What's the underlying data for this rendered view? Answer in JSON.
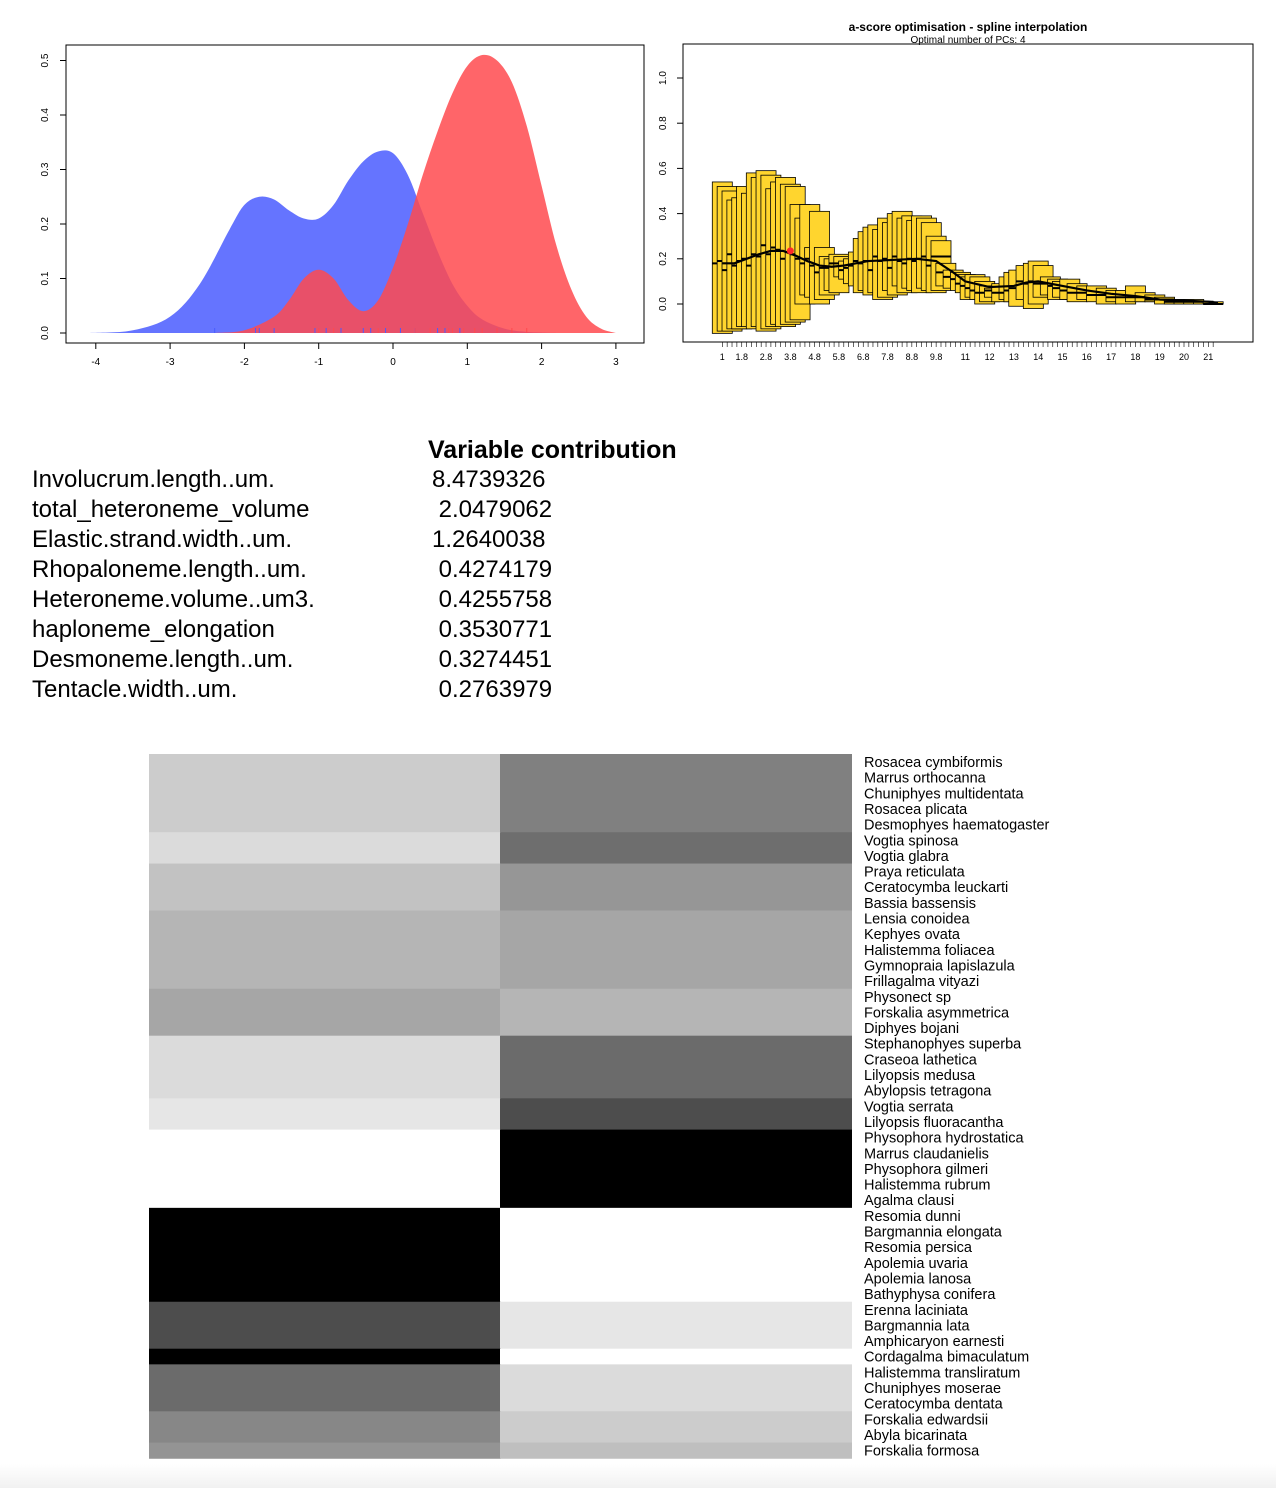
{
  "density_plot": {
    "chart_data": {
      "type": "area",
      "title": "",
      "xlabel": "",
      "ylabel": "",
      "xlim": [
        -4.2,
        3.1
      ],
      "ylim": [
        0,
        0.52
      ],
      "x_ticks": [
        "-4",
        "-3",
        "-2",
        "-1",
        "0",
        "1",
        "2",
        "3"
      ],
      "y_ticks": [
        "0.0",
        "0.1",
        "0.2",
        "0.3",
        "0.4",
        "0.5"
      ],
      "series": [
        {
          "color": "#4a5cff",
          "fill_opacity": 0.85,
          "x": [
            -4.1,
            -3.5,
            -3.0,
            -2.6,
            -2.2,
            -2.0,
            -1.8,
            -1.6,
            -1.4,
            -1.2,
            -1.0,
            -0.8,
            -0.6,
            -0.4,
            -0.2,
            0.0,
            0.2,
            0.4,
            0.6,
            0.8,
            1.0,
            1.2,
            1.5,
            1.8,
            2.2
          ],
          "y": [
            0.0,
            0.005,
            0.03,
            0.09,
            0.19,
            0.235,
            0.25,
            0.245,
            0.225,
            0.21,
            0.21,
            0.235,
            0.28,
            0.315,
            0.333,
            0.33,
            0.29,
            0.22,
            0.15,
            0.09,
            0.05,
            0.025,
            0.008,
            0.002,
            0.0
          ]
        },
        {
          "color": "#ff4a4f",
          "fill_opacity": 0.85,
          "x": [
            -2.4,
            -2.0,
            -1.6,
            -1.4,
            -1.2,
            -1.0,
            -0.8,
            -0.6,
            -0.4,
            -0.2,
            0.0,
            0.2,
            0.4,
            0.6,
            0.8,
            1.0,
            1.2,
            1.4,
            1.6,
            1.8,
            2.0,
            2.2,
            2.4,
            2.6,
            2.8,
            3.0
          ],
          "y": [
            0.0,
            0.005,
            0.03,
            0.06,
            0.1,
            0.116,
            0.1,
            0.06,
            0.04,
            0.06,
            0.12,
            0.2,
            0.29,
            0.37,
            0.44,
            0.49,
            0.51,
            0.5,
            0.46,
            0.38,
            0.27,
            0.16,
            0.08,
            0.03,
            0.008,
            0.0
          ]
        }
      ],
      "rug": {
        "blue": [
          -2.4,
          -1.85,
          -1.8,
          -1.6,
          -1.05,
          -0.9,
          -0.7,
          -0.4,
          -0.3,
          -0.1,
          0.1,
          0.3,
          0.6,
          0.7,
          0.9
        ],
        "red": [
          -1.0,
          -0.8,
          -0.2,
          0.3,
          0.5,
          0.75,
          0.8,
          0.95,
          1.1,
          1.2,
          1.4,
          1.6,
          1.8
        ]
      }
    }
  },
  "ascore_plot": {
    "title": "a-score optimisation - spline interpolation",
    "subtitle": "Optimal number of PCs: 4",
    "chart_data": {
      "type": "boxplot",
      "title": "a-score optimisation - spline interpolation",
      "subtitle": "Optimal number of PCs: 4",
      "xlim": [
        0,
        22.5
      ],
      "ylim": [
        -0.14,
        1.16
      ],
      "y_ticks": [
        "0.0",
        "0.2",
        "0.4",
        "0.6",
        "0.8",
        "1.0"
      ],
      "x_ticks": [
        "1",
        "1.8",
        "2.8",
        "3.8",
        "4.8",
        "5.8",
        "6.8",
        "7.8",
        "8.8",
        "9.8",
        "11",
        "12",
        "13",
        "14",
        "15",
        "16",
        "17",
        "18",
        "19",
        "20",
        "21"
      ],
      "box_color": "#ffd52e",
      "boxes": [
        {
          "x": 1.0,
          "lo": -0.13,
          "hi": 0.54,
          "med": 0.18
        },
        {
          "x": 1.2,
          "lo": -0.12,
          "hi": 0.52,
          "med": 0.19
        },
        {
          "x": 1.4,
          "lo": -0.12,
          "hi": 0.5,
          "med": 0.15
        },
        {
          "x": 1.6,
          "lo": -0.11,
          "hi": 0.46,
          "med": 0.22
        },
        {
          "x": 1.8,
          "lo": -0.11,
          "hi": 0.47,
          "med": 0.17
        },
        {
          "x": 2.0,
          "lo": -0.1,
          "hi": 0.52,
          "med": 0.19
        },
        {
          "x": 2.2,
          "lo": -0.1,
          "hi": 0.49,
          "med": 0.2
        },
        {
          "x": 2.4,
          "lo": -0.11,
          "hi": 0.58,
          "med": 0.17
        },
        {
          "x": 2.6,
          "lo": -0.1,
          "hi": 0.56,
          "med": 0.22
        },
        {
          "x": 2.8,
          "lo": -0.12,
          "hi": 0.59,
          "med": 0.21
        },
        {
          "x": 3.0,
          "lo": -0.11,
          "hi": 0.57,
          "med": 0.26
        },
        {
          "x": 3.2,
          "lo": -0.1,
          "hi": 0.51,
          "med": 0.22
        },
        {
          "x": 3.4,
          "lo": -0.09,
          "hi": 0.54,
          "med": 0.25
        },
        {
          "x": 3.6,
          "lo": -0.1,
          "hi": 0.56,
          "med": 0.24
        },
        {
          "x": 3.8,
          "lo": -0.09,
          "hi": 0.53,
          "med": 0.2
        },
        {
          "x": 4.0,
          "lo": -0.08,
          "hi": 0.52,
          "med": 0.23
        },
        {
          "x": 4.2,
          "lo": -0.07,
          "hi": 0.44,
          "med": 0.22
        },
        {
          "x": 4.4,
          "lo": 0.0,
          "hi": 0.38,
          "med": 0.2
        },
        {
          "x": 4.6,
          "lo": 0.04,
          "hi": 0.44,
          "med": 0.18
        },
        {
          "x": 4.8,
          "lo": 0.03,
          "hi": 0.25,
          "med": 0.2
        },
        {
          "x": 5.0,
          "lo": 0.0,
          "hi": 0.41,
          "med": 0.17
        },
        {
          "x": 5.2,
          "lo": 0.02,
          "hi": 0.25,
          "med": 0.14
        },
        {
          "x": 5.4,
          "lo": 0.04,
          "hi": 0.21,
          "med": 0.16
        },
        {
          "x": 5.6,
          "lo": 0.06,
          "hi": 0.2,
          "med": 0.16
        },
        {
          "x": 5.8,
          "lo": 0.05,
          "hi": 0.22,
          "med": 0.18
        },
        {
          "x": 6.0,
          "lo": 0.12,
          "hi": 0.21,
          "med": 0.18
        },
        {
          "x": 6.2,
          "lo": 0.11,
          "hi": 0.19,
          "med": 0.15
        },
        {
          "x": 6.4,
          "lo": 0.09,
          "hi": 0.2,
          "med": 0.16
        },
        {
          "x": 6.6,
          "lo": 0.08,
          "hi": 0.23,
          "med": 0.17
        },
        {
          "x": 6.8,
          "lo": 0.05,
          "hi": 0.29,
          "med": 0.19
        },
        {
          "x": 7.0,
          "lo": 0.06,
          "hi": 0.32,
          "med": 0.18
        },
        {
          "x": 7.2,
          "lo": 0.04,
          "hi": 0.34,
          "med": 0.19
        },
        {
          "x": 7.4,
          "lo": 0.05,
          "hi": 0.35,
          "med": 0.15
        },
        {
          "x": 7.6,
          "lo": 0.02,
          "hi": 0.33,
          "med": 0.21
        },
        {
          "x": 7.8,
          "lo": 0.03,
          "hi": 0.38,
          "med": 0.19
        },
        {
          "x": 8.0,
          "lo": 0.06,
          "hi": 0.36,
          "med": 0.2
        },
        {
          "x": 8.2,
          "lo": 0.04,
          "hi": 0.4,
          "med": 0.16
        },
        {
          "x": 8.4,
          "lo": 0.08,
          "hi": 0.41,
          "med": 0.21
        },
        {
          "x": 8.6,
          "lo": 0.05,
          "hi": 0.38,
          "med": 0.19
        },
        {
          "x": 8.8,
          "lo": 0.07,
          "hi": 0.39,
          "med": 0.18
        },
        {
          "x": 9.0,
          "lo": 0.06,
          "hi": 0.37,
          "med": 0.2
        },
        {
          "x": 9.2,
          "lo": 0.05,
          "hi": 0.39,
          "med": 0.19
        },
        {
          "x": 9.4,
          "lo": 0.07,
          "hi": 0.38,
          "med": 0.2
        },
        {
          "x": 9.6,
          "lo": 0.06,
          "hi": 0.36,
          "med": 0.21
        },
        {
          "x": 9.8,
          "lo": 0.05,
          "hi": 0.3,
          "med": 0.17
        },
        {
          "x": 10.0,
          "lo": 0.06,
          "hi": 0.28,
          "med": 0.21
        },
        {
          "x": 10.2,
          "lo": 0.08,
          "hi": 0.18,
          "med": 0.14
        },
        {
          "x": 10.5,
          "lo": 0.07,
          "hi": 0.15,
          "med": 0.12
        },
        {
          "x": 10.8,
          "lo": 0.06,
          "hi": 0.14,
          "med": 0.11
        },
        {
          "x": 11.0,
          "lo": 0.05,
          "hi": 0.13,
          "med": 0.09
        },
        {
          "x": 11.2,
          "lo": 0.02,
          "hi": 0.12,
          "med": 0.08
        },
        {
          "x": 11.4,
          "lo": 0.03,
          "hi": 0.13,
          "med": 0.07
        },
        {
          "x": 11.6,
          "lo": 0.02,
          "hi": 0.12,
          "med": 0.06
        },
        {
          "x": 11.8,
          "lo": 0.0,
          "hi": 0.1,
          "med": 0.05
        },
        {
          "x": 12.0,
          "lo": 0.01,
          "hi": 0.08,
          "med": 0.05
        },
        {
          "x": 12.2,
          "lo": 0.03,
          "hi": 0.07,
          "med": 0.06
        },
        {
          "x": 12.5,
          "lo": 0.01,
          "hi": 0.09,
          "med": 0.05
        },
        {
          "x": 12.8,
          "lo": 0.02,
          "hi": 0.12,
          "med": 0.05
        },
        {
          "x": 13.0,
          "lo": 0.01,
          "hi": 0.14,
          "med": 0.06
        },
        {
          "x": 13.2,
          "lo": -0.01,
          "hi": 0.15,
          "med": 0.07
        },
        {
          "x": 13.5,
          "lo": 0.02,
          "hi": 0.17,
          "med": 0.1
        },
        {
          "x": 13.8,
          "lo": -0.02,
          "hi": 0.18,
          "med": 0.09
        },
        {
          "x": 14.0,
          "lo": 0.0,
          "hi": 0.19,
          "med": 0.1
        },
        {
          "x": 14.2,
          "lo": 0.03,
          "hi": 0.17,
          "med": 0.09
        },
        {
          "x": 14.5,
          "lo": 0.04,
          "hi": 0.12,
          "med": 0.09
        },
        {
          "x": 14.8,
          "lo": 0.02,
          "hi": 0.11,
          "med": 0.08
        },
        {
          "x": 15.0,
          "lo": 0.03,
          "hi": 0.1,
          "med": 0.07
        },
        {
          "x": 15.3,
          "lo": 0.02,
          "hi": 0.11,
          "med": 0.06
        },
        {
          "x": 15.6,
          "lo": 0.01,
          "hi": 0.09,
          "med": 0.05
        },
        {
          "x": 16.0,
          "lo": 0.02,
          "hi": 0.08,
          "med": 0.05
        },
        {
          "x": 16.4,
          "lo": 0.01,
          "hi": 0.08,
          "med": 0.04
        },
        {
          "x": 16.8,
          "lo": 0.0,
          "hi": 0.07,
          "med": 0.04
        },
        {
          "x": 17.2,
          "lo": 0.01,
          "hi": 0.06,
          "med": 0.03
        },
        {
          "x": 17.6,
          "lo": 0.0,
          "hi": 0.06,
          "med": 0.03
        },
        {
          "x": 18.0,
          "lo": 0.01,
          "hi": 0.08,
          "med": 0.03
        },
        {
          "x": 18.4,
          "lo": 0.01,
          "hi": 0.05,
          "med": 0.03
        },
        {
          "x": 18.8,
          "lo": 0.01,
          "hi": 0.04,
          "med": 0.02
        },
        {
          "x": 19.2,
          "lo": 0.0,
          "hi": 0.03,
          "med": 0.02
        },
        {
          "x": 19.6,
          "lo": 0.0,
          "hi": 0.02,
          "med": 0.01
        },
        {
          "x": 20.0,
          "lo": 0.0,
          "hi": 0.02,
          "med": 0.01
        },
        {
          "x": 20.4,
          "lo": 0.0,
          "hi": 0.02,
          "med": 0.01
        },
        {
          "x": 20.8,
          "lo": 0.0,
          "hi": 0.01,
          "med": 0.01
        },
        {
          "x": 21.2,
          "lo": 0.0,
          "hi": 0.01,
          "med": 0.0
        }
      ],
      "spline": {
        "x": [
          1.0,
          1.5,
          2.0,
          2.5,
          3.0,
          3.5,
          4.0,
          4.5,
          5.0,
          5.5,
          6.0,
          7.0,
          8.0,
          9.0,
          9.8,
          10.5,
          11.0,
          12.0,
          13.0,
          13.5,
          14.0,
          15.0,
          16.0,
          17.0,
          18.0,
          19.0,
          20.0,
          21.0,
          21.4
        ],
        "y": [
          0.18,
          0.18,
          0.2,
          0.22,
          0.235,
          0.235,
          0.215,
          0.19,
          0.17,
          0.165,
          0.17,
          0.19,
          0.195,
          0.2,
          0.19,
          0.14,
          0.1,
          0.075,
          0.08,
          0.095,
          0.1,
          0.08,
          0.06,
          0.045,
          0.035,
          0.02,
          0.015,
          0.01,
          0.005
        ]
      },
      "optimum": {
        "x": 3.8,
        "y": 0.235
      }
    }
  },
  "variable_contribution": {
    "title": "Variable contribution",
    "rows": [
      {
        "name": "Involucrum.length..um.",
        "value": "8.4739326"
      },
      {
        "name": "total_heteroneme_volume",
        "value": " 2.0479062"
      },
      {
        "name": "Elastic.strand.width..um.",
        "value": "1.2640038"
      },
      {
        "name": "Rhopaloneme.length..um.",
        "value": " 0.4274179"
      },
      {
        "name": "Heteroneme.volume..um3.",
        "value": " 0.4255758"
      },
      {
        "name": "haploneme_elongation",
        "value": " 0.3530771"
      },
      {
        "name": "Desmoneme.length..um.",
        "value": " 0.3274451"
      },
      {
        "name": "Tentacle.width..um.",
        "value": " 0.2763979"
      }
    ]
  },
  "heatmap": {
    "chart_data": {
      "type": "heatmap",
      "columns": [
        "0",
        "1"
      ],
      "value_range": [
        0,
        1
      ],
      "color_scale": "black = 1, white = 0",
      "groups": [
        {
          "rows": [
            "Rosacea cymbiformis",
            "Marrus orthocanna",
            "Chuniphyes multidentata",
            "Rosacea plicata",
            "Desmophyes haematogaster"
          ],
          "values": [
            0.2,
            0.5
          ]
        },
        {
          "rows": [
            "Vogtia spinosa",
            "Vogtia glabra"
          ],
          "values": [
            0.14,
            0.57
          ]
        },
        {
          "rows": [
            "Praya reticulata",
            "Ceratocymba leuckarti",
            "Bassia bassensis"
          ],
          "values": [
            0.24,
            0.41
          ]
        },
        {
          "rows": [
            "Lensia conoidea",
            "Kephyes ovata",
            "Halistemma foliacea",
            "Gymnopraia lapislazula",
            "Frillagalma vityazi"
          ],
          "values": [
            0.29,
            0.35
          ]
        },
        {
          "rows": [
            "Physonect sp",
            "Forskalia asymmetrica",
            "Diphyes bojani"
          ],
          "values": [
            0.35,
            0.29
          ]
        },
        {
          "rows": [
            "Stephanophyes superba",
            "Craseoa lathetica",
            "Lilyopsis medusa",
            "Abylopsis tetragona"
          ],
          "values": [
            0.14,
            0.58
          ]
        },
        {
          "rows": [
            "Vogtia serrata",
            "Lilyopsis fluoracantha"
          ],
          "values": [
            0.1,
            0.7
          ]
        },
        {
          "rows": [
            "Physophora hydrostatica",
            "Marrus claudanielis",
            "Physophora gilmeri",
            "Halistemma rubrum",
            "Agalma clausi"
          ],
          "values": [
            0.0,
            1.0
          ]
        },
        {
          "rows": [
            "Resomia dunni",
            "Bargmannia elongata",
            "Resomia persica",
            "Apolemia uvaria",
            "Apolemia lanosa",
            "Bathyphysa conifera"
          ],
          "values": [
            1.0,
            0.0
          ]
        },
        {
          "rows": [
            "Erenna laciniata",
            "Bargmannia lata",
            "Amphicaryon earnesti"
          ],
          "values": [
            0.7,
            0.1
          ]
        },
        {
          "rows": [
            "Cordagalma bimaculatum"
          ],
          "values": [
            1.0,
            0.0
          ]
        },
        {
          "rows": [
            "Halistemma transliratum",
            "Chuniphyes moserae",
            "Ceratocymba dentata"
          ],
          "values": [
            0.58,
            0.14
          ]
        },
        {
          "rows": [
            "Forskalia edwardsii",
            "Abyla bicarinata"
          ],
          "values": [
            0.47,
            0.2
          ]
        },
        {
          "rows": [
            "Forskalia formosa"
          ],
          "values": [
            0.42,
            0.25
          ]
        }
      ]
    }
  }
}
